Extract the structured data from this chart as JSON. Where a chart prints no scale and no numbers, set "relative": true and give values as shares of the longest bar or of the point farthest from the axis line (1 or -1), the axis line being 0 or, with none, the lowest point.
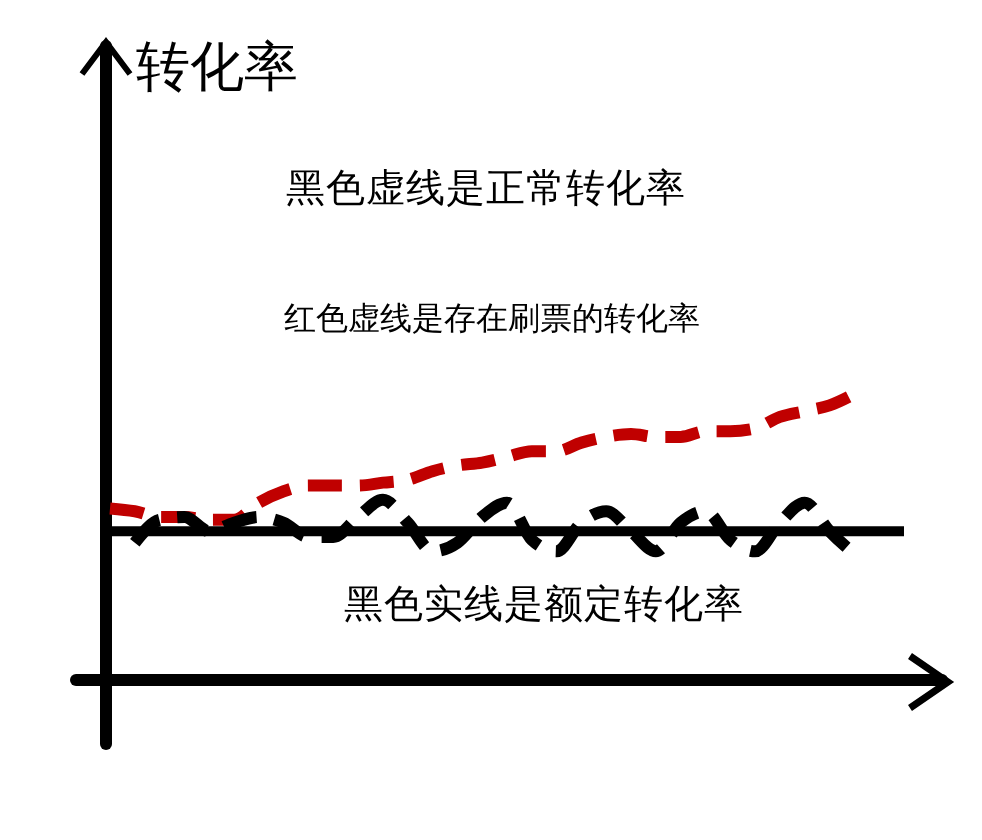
{
  "chart_data": {
    "type": "line",
    "relative": true,
    "annotations": [
      "转化率",
      "黑色虚线是正常转化率",
      "红色虚线是存在刷票的转化率",
      "黑色实线是额定转化率"
    ],
    "categories": [
      null,
      null,
      null,
      null,
      null,
      null,
      null,
      null,
      null,
      null,
      null,
      null,
      null,
      null,
      null,
      null,
      null,
      null,
      null,
      null,
      null,
      null,
      null,
      null,
      null,
      null,
      null,
      null,
      null,
      null,
      null,
      null,
      null
    ],
    "series": [
      {
        "color": "#c00000",
        "line_style": "dashed",
        "values": [
          0.6,
          0.59,
          0.57,
          0.57,
          0.56,
          0.56,
          0.62,
          0.66,
          0.68,
          0.68,
          0.68,
          0.69,
          0.7,
          0.73,
          0.75,
          0.76,
          0.78,
          0.8,
          0.8,
          0.83,
          0.85,
          0.86,
          0.85,
          0.85,
          0.87,
          0.87,
          0.88,
          0.92,
          0.94,
          0.96,
          1,
          null,
          null
        ]
      },
      {
        "color": "#000000",
        "line_style": "dashed",
        "values": [
          null,
          0.48,
          0.56,
          0.57,
          0.52,
          0.55,
          0.57,
          0.55,
          0.5,
          0.5,
          0.57,
          0.63,
          0.55,
          0.45,
          0.48,
          0.57,
          0.62,
          0.49,
          0.45,
          0.55,
          0.59,
          0.52,
          0.45,
          0.55,
          0.59,
          0.49,
          0.45,
          0.55,
          0.62,
          0.52,
          0.44,
          null,
          null
        ]
      },
      {
        "color": "#000000",
        "line_style": "solid",
        "values": [
          0.52,
          0.52,
          0.52,
          0.52,
          0.52,
          0.52,
          0.52,
          0.52,
          0.52,
          0.52,
          0.52,
          0.52,
          0.52,
          0.52,
          0.52,
          0.52,
          0.52,
          0.52,
          0.52,
          0.52,
          0.52,
          0.52,
          0.52,
          0.52,
          0.52,
          0.52,
          0.52,
          0.52,
          0.52,
          0.52,
          0.52,
          0.52,
          0.52
        ]
      }
    ]
  }
}
